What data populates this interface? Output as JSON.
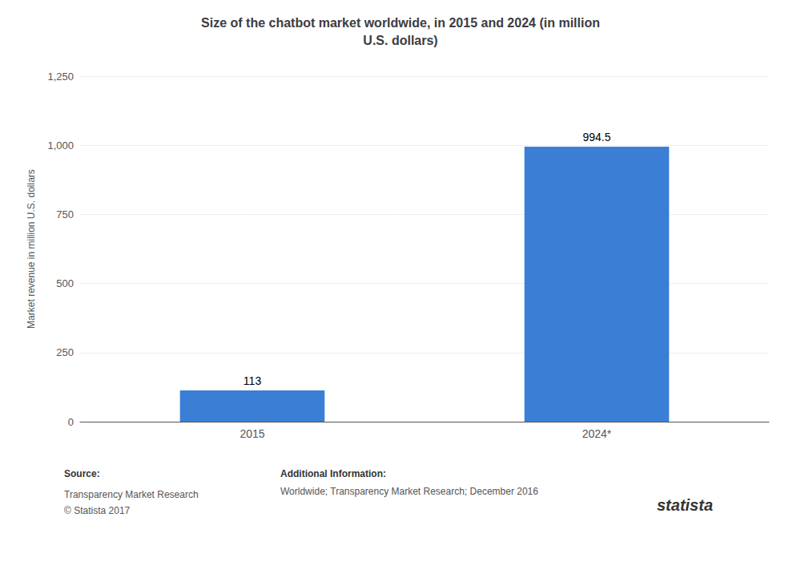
{
  "chart_data": {
    "type": "bar",
    "title": "Size of the chatbot market worldwide, in 2015 and 2024 (in million\nU.S. dollars)",
    "ylabel": "Market revenue in million U.S. dollars",
    "categories": [
      "2015",
      "2024*"
    ],
    "values": [
      113,
      994.5
    ],
    "color": "#3a7fd5",
    "ylim": [
      0,
      1250
    ],
    "yticks": [
      0,
      250,
      500,
      750,
      {
        "value": 1000,
        "label": "1,000"
      },
      {
        "value": 1250,
        "label": "1,250"
      }
    ],
    "grid": true,
    "data_labels": true,
    "annotations": [
      "Source:",
      "Transparency Market Research\n© Statista 2017",
      "Additional Information:",
      "Worldwide; Transparency Market Research; December 2016",
      "statista"
    ]
  }
}
